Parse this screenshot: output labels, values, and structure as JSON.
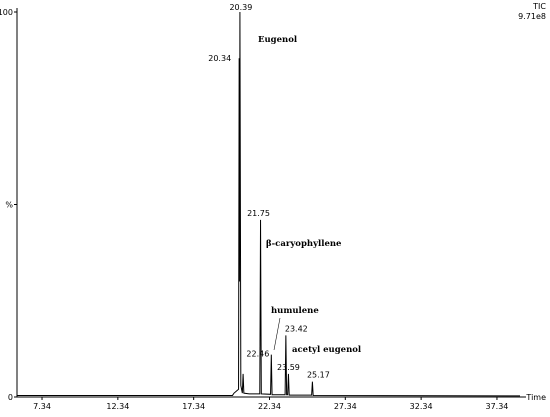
{
  "chart_data": {
    "type": "line",
    "trace_name": "TIC",
    "scale_note": "9.71e8",
    "x_label": "Time",
    "x": [
      5.69,
      19.9,
      20.0,
      20.3,
      20.34,
      20.36,
      20.39,
      20.45,
      20.55,
      20.6,
      20.65,
      21.0,
      21.7,
      21.75,
      21.8,
      22.41,
      22.46,
      22.51,
      23.37,
      23.42,
      23.47,
      23.54,
      23.59,
      23.64,
      25.12,
      25.17,
      25.22,
      38.86
    ],
    "series": [
      {
        "color": "#000000",
        "values": [
          0.4,
          0.4,
          1,
          2,
          88,
          30,
          100,
          3,
          1,
          6,
          1,
          0.8,
          0.8,
          46,
          0.8,
          0.7,
          11,
          0.6,
          0.6,
          16,
          0.6,
          0.6,
          6,
          0.5,
          0.5,
          4,
          0.4,
          0.3
        ]
      }
    ],
    "compounds": [
      "Eugenol",
      "β-caryophyllene",
      "humulene",
      "acetyl eugenol"
    ],
    "xlim": [
      5.69,
      38.86
    ],
    "xticks": [
      7.34,
      12.34,
      17.34,
      22.34,
      27.34,
      32.34,
      37.34
    ],
    "ylim": [
      0,
      100
    ],
    "yticks": [
      0,
      {
        "value": 50,
        "label": "%"
      },
      100
    ]
  }
}
